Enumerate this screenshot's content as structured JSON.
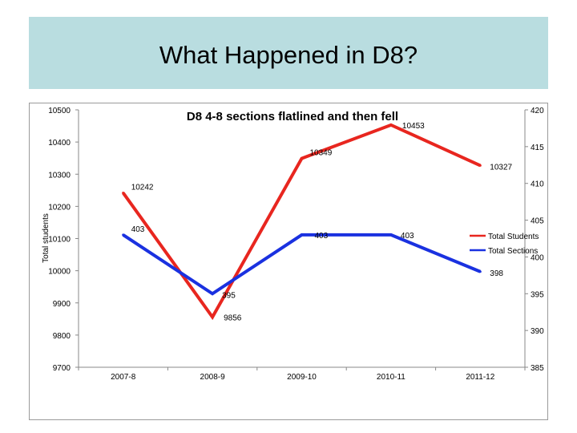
{
  "slide": {
    "title": "What Happened in D8?"
  },
  "chart_data": {
    "type": "line",
    "title": "D8 4-8 sections flatlined and then fell",
    "ylabel": "Total students",
    "y2label": "",
    "categories": [
      "2007-8",
      "2008-9",
      "2009-10",
      "2010-11",
      "2011-12"
    ],
    "ylim": [
      9700,
      10500
    ],
    "y2lim": [
      385,
      420
    ],
    "yticks": [
      "10500",
      "10400",
      "10300",
      "10200",
      "10100",
      "10000",
      "9900",
      "9800",
      "9700"
    ],
    "y2ticks": [
      "420",
      "415",
      "410",
      "405",
      "400",
      "395",
      "390",
      "385"
    ],
    "legend_position": "right",
    "grid": false,
    "series": [
      {
        "name": "Total Students",
        "axis": "left",
        "color": "#e8261f",
        "values": [
          10242,
          9856,
          10349,
          10453,
          10327
        ],
        "labels": [
          "10242",
          "9856",
          "10349",
          "10453",
          "10327"
        ]
      },
      {
        "name": "Total Sections",
        "axis": "right",
        "color": "#1a31e0",
        "values": [
          403,
          395,
          403,
          403,
          398
        ],
        "labels": [
          "403",
          "395",
          "403",
          "403",
          "398"
        ]
      }
    ]
  }
}
